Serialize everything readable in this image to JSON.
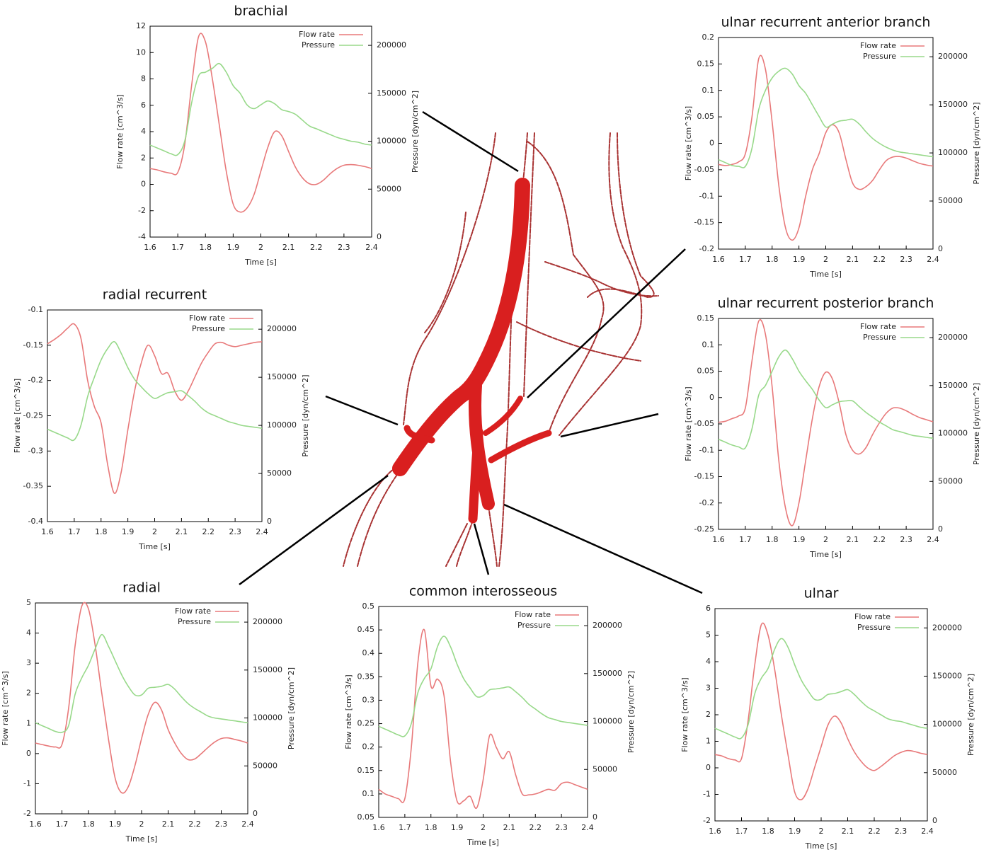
{
  "chart_data": [
    {
      "type": "line",
      "title": "brachial",
      "xlabel": "Time [s]",
      "ylabel": "Flow rate [cm^3/s]",
      "y2label": "Pressure [dyn/cm^2]",
      "legend": "upper right",
      "x": [
        1.6,
        1.625,
        1.65,
        1.675,
        1.7,
        1.725,
        1.75,
        1.775,
        1.8,
        1.825,
        1.85,
        1.875,
        1.9,
        1.925,
        1.95,
        1.975,
        2.0,
        2.025,
        2.05,
        2.075,
        2.1,
        2.125,
        2.15,
        2.175,
        2.2,
        2.225,
        2.25,
        2.275,
        2.3,
        2.325,
        2.35,
        2.375,
        2.4
      ],
      "xlim": [
        1.6,
        2.4
      ],
      "xticks": [
        1.6,
        1.7,
        1.8,
        1.9,
        2,
        2.1,
        2.2,
        2.3,
        2.4
      ],
      "ylim": [
        -4,
        12
      ],
      "yticks": [
        -4,
        -2,
        0,
        2,
        4,
        6,
        8,
        10,
        12
      ],
      "y2lim": [
        0,
        220000
      ],
      "y2ticks": [
        0,
        50000,
        100000,
        150000,
        200000
      ],
      "series": [
        {
          "name": "Flow rate",
          "color": "#e8797a",
          "values": [
            1.2,
            1.1,
            0.95,
            0.85,
            0.9,
            3.0,
            7.5,
            11.2,
            10.8,
            8.0,
            4.5,
            1.0,
            -1.5,
            -2.1,
            -1.8,
            -0.8,
            1.0,
            2.8,
            4.0,
            3.7,
            2.5,
            1.3,
            0.5,
            0.05,
            0.0,
            0.3,
            0.8,
            1.2,
            1.45,
            1.5,
            1.45,
            1.35,
            1.2
          ]
        },
        {
          "name": "Pressure",
          "color": "#98d98a",
          "axis": "y2",
          "values": [
            96000,
            93000,
            90000,
            87000,
            86000,
            100000,
            140000,
            168000,
            172000,
            176000,
            181000,
            172000,
            158000,
            150000,
            138000,
            134000,
            138000,
            142000,
            139000,
            133000,
            131000,
            128000,
            122000,
            116000,
            113000,
            110000,
            107000,
            104000,
            102000,
            100000,
            99000,
            97000,
            96000
          ]
        }
      ]
    },
    {
      "type": "line",
      "title": "ulnar recurrent anterior branch",
      "xlabel": "Time [s]",
      "ylabel": "Flow rate [cm^3/s]",
      "y2label": "Pressure [dyn/cm^2]",
      "legend": "upper right",
      "x": [
        1.6,
        1.625,
        1.65,
        1.675,
        1.7,
        1.725,
        1.75,
        1.775,
        1.8,
        1.825,
        1.85,
        1.875,
        1.9,
        1.925,
        1.95,
        1.975,
        2.0,
        2.025,
        2.05,
        2.075,
        2.1,
        2.125,
        2.15,
        2.175,
        2.2,
        2.225,
        2.25,
        2.275,
        2.3,
        2.325,
        2.35,
        2.375,
        2.4
      ],
      "xlim": [
        1.6,
        2.4
      ],
      "xticks": [
        1.6,
        1.7,
        1.8,
        1.9,
        2,
        2.1,
        2.2,
        2.3,
        2.4
      ],
      "ylim": [
        -0.2,
        0.2
      ],
      "yticks": [
        -0.2,
        -0.15,
        -0.1,
        -0.05,
        0,
        0.05,
        0.1,
        0.15,
        0.2
      ],
      "y2lim": [
        0,
        220000
      ],
      "y2ticks": [
        0,
        50000,
        100000,
        150000,
        200000
      ],
      "series": [
        {
          "name": "Flow rate",
          "color": "#e8797a",
          "values": [
            -0.04,
            -0.042,
            -0.04,
            -0.035,
            -0.02,
            0.05,
            0.16,
            0.14,
            0.04,
            -0.08,
            -0.16,
            -0.183,
            -0.16,
            -0.1,
            -0.05,
            -0.02,
            0.02,
            0.035,
            0.02,
            -0.03,
            -0.075,
            -0.087,
            -0.082,
            -0.07,
            -0.05,
            -0.033,
            -0.026,
            -0.025,
            -0.028,
            -0.033,
            -0.038,
            -0.041,
            -0.043
          ]
        },
        {
          "name": "Pressure",
          "color": "#98d98a",
          "axis": "y2",
          "values": [
            93000,
            90000,
            87000,
            86000,
            86000,
            105000,
            145000,
            165000,
            178000,
            185000,
            188000,
            182000,
            170000,
            162000,
            150000,
            138000,
            127000,
            130000,
            133000,
            134000,
            135000,
            130000,
            122000,
            115000,
            110000,
            106000,
            103000,
            101000,
            100000,
            99000,
            98000,
            97000,
            96000
          ]
        }
      ]
    },
    {
      "type": "line",
      "title": "radial recurrent",
      "xlabel": "Time [s]",
      "ylabel": "Flow rate [cm^3/s]",
      "y2label": "Pressure [dyn/cm^2]",
      "legend": "upper right",
      "x": [
        1.6,
        1.625,
        1.65,
        1.675,
        1.7,
        1.725,
        1.75,
        1.775,
        1.8,
        1.825,
        1.85,
        1.875,
        1.9,
        1.925,
        1.95,
        1.975,
        2.0,
        2.025,
        2.05,
        2.075,
        2.1,
        2.125,
        2.15,
        2.175,
        2.2,
        2.225,
        2.25,
        2.275,
        2.3,
        2.325,
        2.35,
        2.375,
        2.4
      ],
      "xlim": [
        1.6,
        2.4
      ],
      "xticks": [
        1.6,
        1.7,
        1.8,
        1.9,
        2,
        2.1,
        2.2,
        2.3,
        2.4
      ],
      "ylim": [
        -0.4,
        -0.1
      ],
      "yticks": [
        -0.4,
        -0.35,
        -0.3,
        -0.25,
        -0.2,
        -0.15,
        -0.1
      ],
      "y2lim": [
        0,
        220000
      ],
      "y2ticks": [
        0,
        50000,
        100000,
        150000,
        200000
      ],
      "series": [
        {
          "name": "Flow rate",
          "color": "#e8797a",
          "values": [
            -0.148,
            -0.142,
            -0.135,
            -0.126,
            -0.12,
            -0.14,
            -0.2,
            -0.237,
            -0.26,
            -0.32,
            -0.36,
            -0.33,
            -0.27,
            -0.215,
            -0.175,
            -0.15,
            -0.165,
            -0.19,
            -0.19,
            -0.215,
            -0.228,
            -0.215,
            -0.195,
            -0.175,
            -0.16,
            -0.148,
            -0.146,
            -0.15,
            -0.152,
            -0.15,
            -0.148,
            -0.146,
            -0.145
          ]
        },
        {
          "name": "Pressure",
          "color": "#98d98a",
          "axis": "y2",
          "values": [
            96000,
            93000,
            90000,
            87000,
            85000,
            100000,
            130000,
            150000,
            168000,
            180000,
            187000,
            175000,
            160000,
            148000,
            140000,
            133000,
            128000,
            131000,
            134000,
            135000,
            136000,
            131000,
            125000,
            118000,
            113000,
            110000,
            107000,
            104000,
            102000,
            100000,
            99000,
            98000,
            97000
          ]
        }
      ]
    },
    {
      "type": "line",
      "title": "ulnar recurrent posterior branch",
      "xlabel": "Time [s]",
      "ylabel": "Flow rate [cm^3/s]",
      "y2label": "Pressure [dyn/cm^2]",
      "legend": "upper right",
      "x": [
        1.6,
        1.625,
        1.65,
        1.675,
        1.7,
        1.725,
        1.75,
        1.775,
        1.8,
        1.825,
        1.85,
        1.875,
        1.9,
        1.925,
        1.95,
        1.975,
        2.0,
        2.025,
        2.05,
        2.075,
        2.1,
        2.125,
        2.15,
        2.175,
        2.2,
        2.225,
        2.25,
        2.275,
        2.3,
        2.325,
        2.35,
        2.375,
        2.4
      ],
      "xlim": [
        1.6,
        2.4
      ],
      "xticks": [
        1.6,
        1.7,
        1.8,
        1.9,
        2,
        2.1,
        2.2,
        2.3,
        2.4
      ],
      "ylim": [
        -0.25,
        0.15
      ],
      "yticks": [
        -0.25,
        -0.2,
        -0.15,
        -0.1,
        -0.05,
        0,
        0.05,
        0.1,
        0.15
      ],
      "y2lim": [
        0,
        220000
      ],
      "y2ticks": [
        0,
        50000,
        100000,
        150000,
        200000
      ],
      "series": [
        {
          "name": "Flow rate",
          "color": "#e8797a",
          "values": [
            -0.047,
            -0.045,
            -0.04,
            -0.035,
            -0.02,
            0.07,
            0.145,
            0.12,
            0.02,
            -0.12,
            -0.21,
            -0.243,
            -0.2,
            -0.12,
            -0.04,
            0.02,
            0.048,
            0.035,
            -0.01,
            -0.07,
            -0.1,
            -0.107,
            -0.095,
            -0.07,
            -0.048,
            -0.03,
            -0.02,
            -0.02,
            -0.025,
            -0.032,
            -0.038,
            -0.042,
            -0.046
          ]
        },
        {
          "name": "Pressure",
          "color": "#98d98a",
          "axis": "y2",
          "values": [
            94000,
            91000,
            88000,
            86000,
            85000,
            105000,
            140000,
            150000,
            165000,
            180000,
            187000,
            178000,
            165000,
            155000,
            146000,
            135000,
            127000,
            130000,
            133000,
            134000,
            134000,
            128000,
            122000,
            117000,
            112000,
            108000,
            104000,
            102000,
            100000,
            98000,
            97000,
            96000,
            95000
          ]
        }
      ]
    },
    {
      "type": "line",
      "title": "radial",
      "xlabel": "Time [s]",
      "ylabel": "Flow rate [cm^3/s]",
      "y2label": "Pressure [dyn/cm^2]",
      "legend": "upper right",
      "x": [
        1.6,
        1.625,
        1.65,
        1.675,
        1.7,
        1.725,
        1.75,
        1.775,
        1.8,
        1.825,
        1.85,
        1.875,
        1.9,
        1.925,
        1.95,
        1.975,
        2.0,
        2.025,
        2.05,
        2.075,
        2.1,
        2.125,
        2.15,
        2.175,
        2.2,
        2.225,
        2.25,
        2.275,
        2.3,
        2.325,
        2.35,
        2.375,
        2.4
      ],
      "xlim": [
        1.6,
        2.4
      ],
      "xticks": [
        1.6,
        1.7,
        1.8,
        1.9,
        2,
        2.1,
        2.2,
        2.3,
        2.4
      ],
      "ylim": [
        -2,
        5
      ],
      "yticks": [
        -2,
        -1,
        0,
        1,
        2,
        3,
        4,
        5
      ],
      "y2lim": [
        0,
        220000
      ],
      "y2ticks": [
        0,
        50000,
        100000,
        150000,
        200000
      ],
      "series": [
        {
          "name": "Flow rate",
          "color": "#e8797a",
          "values": [
            0.35,
            0.3,
            0.25,
            0.22,
            0.3,
            1.5,
            3.6,
            4.9,
            4.8,
            3.6,
            2.0,
            0.5,
            -0.8,
            -1.3,
            -1.1,
            -0.4,
            0.5,
            1.3,
            1.7,
            1.45,
            0.8,
            0.35,
            0.0,
            -0.2,
            -0.18,
            0.0,
            0.2,
            0.38,
            0.5,
            0.52,
            0.47,
            0.42,
            0.35
          ]
        },
        {
          "name": "Pressure",
          "color": "#98d98a",
          "axis": "y2",
          "values": [
            95000,
            92000,
            89000,
            86000,
            85000,
            92000,
            125000,
            142000,
            155000,
            172000,
            187000,
            175000,
            160000,
            145000,
            133000,
            124000,
            124000,
            131000,
            132000,
            133000,
            135000,
            130000,
            122000,
            115000,
            110000,
            106000,
            102000,
            100000,
            99000,
            98000,
            97000,
            96000,
            95000
          ]
        }
      ]
    },
    {
      "type": "line",
      "title": "common interosseous",
      "xlabel": "Time [s]",
      "ylabel": "Flow rate [cm^3/s]",
      "y2label": "Pressure [dyn/cm^2]",
      "legend": "upper right",
      "x": [
        1.6,
        1.625,
        1.65,
        1.675,
        1.7,
        1.725,
        1.75,
        1.775,
        1.8,
        1.825,
        1.85,
        1.875,
        1.9,
        1.925,
        1.95,
        1.975,
        2.0,
        2.025,
        2.05,
        2.075,
        2.1,
        2.125,
        2.15,
        2.175,
        2.2,
        2.225,
        2.25,
        2.275,
        2.3,
        2.325,
        2.35,
        2.375,
        2.4
      ],
      "xlim": [
        1.6,
        2.4
      ],
      "xticks": [
        1.6,
        1.7,
        1.8,
        1.9,
        2,
        2.1,
        2.2,
        2.3,
        2.4
      ],
      "ylim": [
        0.05,
        0.5
      ],
      "yticks": [
        0.05,
        0.1,
        0.15,
        0.2,
        0.25,
        0.3,
        0.35,
        0.4,
        0.45,
        0.5
      ],
      "y2lim": [
        0,
        220000
      ],
      "y2ticks": [
        0,
        50000,
        100000,
        150000,
        200000
      ],
      "series": [
        {
          "name": "Flow rate",
          "color": "#e8797a",
          "values": [
            0.11,
            0.1,
            0.095,
            0.09,
            0.09,
            0.2,
            0.38,
            0.45,
            0.33,
            0.345,
            0.31,
            0.17,
            0.085,
            0.085,
            0.095,
            0.07,
            0.13,
            0.225,
            0.2,
            0.175,
            0.19,
            0.14,
            0.1,
            0.098,
            0.1,
            0.105,
            0.11,
            0.108,
            0.122,
            0.125,
            0.12,
            0.115,
            0.11
          ]
        },
        {
          "name": "Pressure",
          "color": "#98d98a",
          "axis": "y2",
          "values": [
            95000,
            92000,
            89000,
            86000,
            85000,
            98000,
            130000,
            145000,
            155000,
            178000,
            189000,
            178000,
            160000,
            145000,
            135000,
            126000,
            127000,
            133000,
            134000,
            135000,
            136000,
            131000,
            125000,
            118000,
            113000,
            108000,
            104000,
            102000,
            100000,
            99000,
            98000,
            97000,
            96000
          ]
        }
      ]
    },
    {
      "type": "line",
      "title": "ulnar",
      "xlabel": "Time [s]",
      "ylabel": "Flow rate [cm^3/s]",
      "y2label": "Pressure [dyn/cm^2]",
      "legend": "upper right",
      "x": [
        1.6,
        1.625,
        1.65,
        1.675,
        1.7,
        1.725,
        1.75,
        1.775,
        1.8,
        1.825,
        1.85,
        1.875,
        1.9,
        1.925,
        1.95,
        1.975,
        2.0,
        2.025,
        2.05,
        2.075,
        2.1,
        2.125,
        2.15,
        2.175,
        2.2,
        2.225,
        2.25,
        2.275,
        2.3,
        2.325,
        2.35,
        2.375,
        2.4
      ],
      "xlim": [
        1.6,
        2.4
      ],
      "xticks": [
        1.6,
        1.7,
        1.8,
        1.9,
        2,
        2.1,
        2.2,
        2.3,
        2.4
      ],
      "ylim": [
        -2,
        6
      ],
      "yticks": [
        -2,
        -1,
        0,
        1,
        2,
        3,
        4,
        5,
        6
      ],
      "y2lim": [
        0,
        220000
      ],
      "y2ticks": [
        0,
        50000,
        100000,
        150000,
        200000
      ],
      "series": [
        {
          "name": "Flow rate",
          "color": "#e8797a",
          "values": [
            0.5,
            0.45,
            0.35,
            0.3,
            0.35,
            1.8,
            3.9,
            5.4,
            5.0,
            3.7,
            2.0,
            0.5,
            -0.9,
            -1.2,
            -0.8,
            0.0,
            0.8,
            1.6,
            1.95,
            1.7,
            1.1,
            0.6,
            0.25,
            0.0,
            -0.1,
            0.05,
            0.25,
            0.45,
            0.58,
            0.65,
            0.62,
            0.55,
            0.5
          ]
        },
        {
          "name": "Pressure",
          "color": "#98d98a",
          "axis": "y2",
          "values": [
            96000,
            93000,
            90000,
            87000,
            86000,
            100000,
            132000,
            148000,
            158000,
            178000,
            189000,
            180000,
            162000,
            146000,
            135000,
            126000,
            126000,
            131000,
            132000,
            134000,
            136000,
            131000,
            124000,
            118000,
            114000,
            110000,
            106000,
            104000,
            103000,
            101000,
            99000,
            97000,
            96000
          ]
        }
      ]
    }
  ]
}
